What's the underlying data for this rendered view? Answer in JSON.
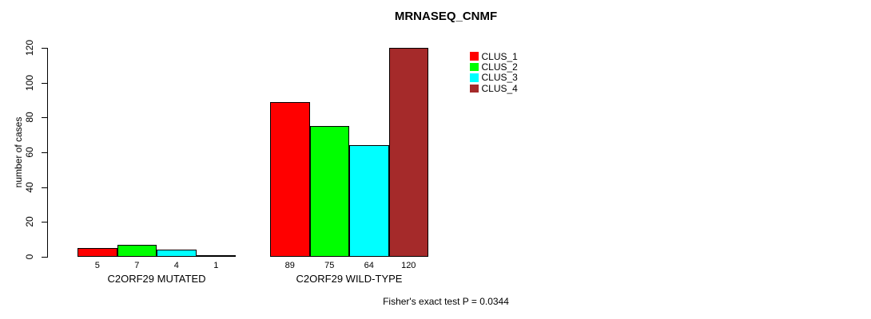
{
  "chart_data": {
    "type": "bar",
    "title": "MRNASEQ_CNMF",
    "ylabel": "number of cases",
    "ylim": [
      0,
      120
    ],
    "yticks": [
      0,
      20,
      40,
      60,
      80,
      100,
      120
    ],
    "categories": [
      "C2ORF29 MUTATED",
      "C2ORF29 WILD-TYPE"
    ],
    "series": [
      {
        "name": "CLUS_1",
        "color": "#ff0000",
        "values": [
          5,
          89
        ]
      },
      {
        "name": "CLUS_2",
        "color": "#00ff00",
        "values": [
          7,
          75
        ]
      },
      {
        "name": "CLUS_3",
        "color": "#00ffff",
        "values": [
          4,
          64
        ]
      },
      {
        "name": "CLUS_4",
        "color": "#a52a2a",
        "values": [
          1,
          120
        ]
      }
    ],
    "bar_value_labels": {
      "C2ORF29 MUTATED": [
        5,
        7,
        4,
        1
      ],
      "C2ORF29 WILD-TYPE": [
        89,
        75,
        64,
        120
      ]
    },
    "legend": [
      "CLUS_1",
      "CLUS_2",
      "CLUS_3",
      "CLUS_4"
    ],
    "legend_position": "top-right",
    "grid": false,
    "footer": "Fisher's exact test P = 0.0344"
  }
}
